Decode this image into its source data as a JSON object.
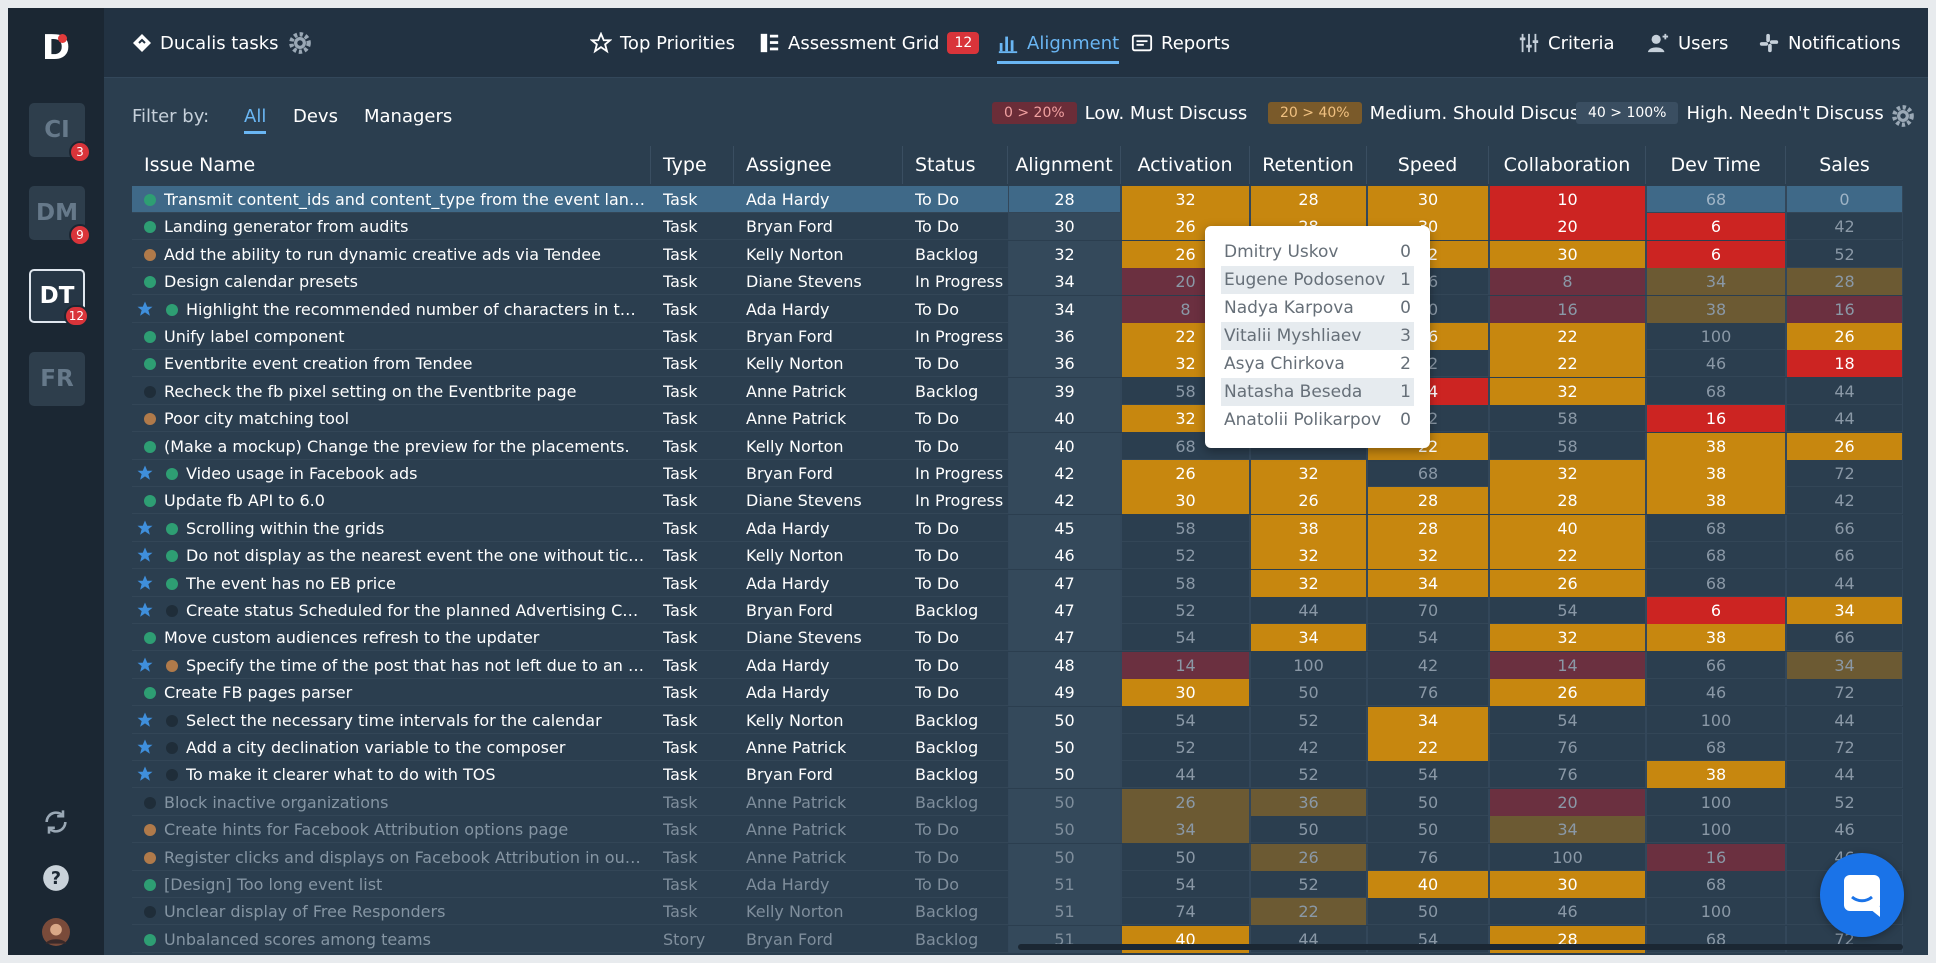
{
  "sidebar": {
    "projects": [
      {
        "code": "CI",
        "badge": "3"
      },
      {
        "code": "DM",
        "badge": "9"
      },
      {
        "code": "DT",
        "badge": "12"
      },
      {
        "code": "FR",
        "badge": ""
      }
    ]
  },
  "topbar": {
    "workspace": "Ducalis tasks",
    "top_priorities": "Top Priorities",
    "assessment_grid": "Assessment Grid",
    "assessment_count": "12",
    "alignment": "Alignment",
    "reports": "Reports",
    "criteria": "Criteria",
    "users": "Users",
    "notifications": "Notifications"
  },
  "filter": {
    "label": "Filter by:",
    "tabs": [
      "All",
      "Devs",
      "Managers"
    ]
  },
  "legend": [
    {
      "range": "0 > 20%",
      "text": "Low. Must Discuss",
      "bg": "#6b2d38",
      "fg": "#f0a0a0"
    },
    {
      "range": "20 > 40%",
      "text": "Medium. Should Discuss",
      "bg": "#7a5a2a",
      "fg": "#f0c080"
    },
    {
      "range": "40 > 100%",
      "text": "High. Needn't Discuss",
      "bg": "#3a4e61",
      "fg": "#ffffff"
    }
  ],
  "columns": {
    "issue": "Issue Name",
    "type": "Type",
    "assignee": "Assignee",
    "status": "Status",
    "alignment": "Alignment",
    "criteria": [
      "Activation",
      "Retention",
      "Speed",
      "Collaboration",
      "Dev Time",
      "Sales"
    ]
  },
  "colors": {
    "green": "#2e9e73",
    "brown": "#b07a4a",
    "dark": "#1f2d39",
    "star": "#3f8fdc"
  },
  "rows": [
    {
      "name": "Transmit content_ids and content_type from the event landin...",
      "type": "Task",
      "assignee": "Ada Hardy",
      "status": "To Do",
      "alignment": "28",
      "star": false,
      "dot": "green",
      "dim": false,
      "sel": true,
      "vals": [
        "32",
        "28",
        "30",
        "10",
        "68",
        "0"
      ],
      "cls": [
        "y",
        "y",
        "y",
        "r",
        "",
        ""
      ]
    },
    {
      "name": "Landing generator from audits",
      "type": "Task",
      "assignee": "Bryan Ford",
      "status": "To Do",
      "alignment": "30",
      "star": false,
      "dot": "green",
      "dim": false,
      "sel": false,
      "vals": [
        "26",
        "28",
        "30",
        "20",
        "6",
        "42"
      ],
      "cls": [
        "y",
        "y",
        "y",
        "r",
        "r",
        ""
      ]
    },
    {
      "name": "Add the ability to run dynamic creative ads via Tendee",
      "type": "Task",
      "assignee": "Kelly Norton",
      "status": "Backlog",
      "alignment": "32",
      "star": false,
      "dot": "brown",
      "dim": false,
      "sel": false,
      "vals": [
        "26",
        "",
        "22",
        "30",
        "6",
        "52"
      ],
      "cls": [
        "y",
        "",
        "y",
        "y",
        "r",
        ""
      ]
    },
    {
      "name": "Design calendar presets",
      "type": "Task",
      "assignee": "Diane Stevens",
      "status": "In Progress",
      "alignment": "34",
      "star": false,
      "dot": "green",
      "dim": false,
      "sel": false,
      "vals": [
        "20",
        "",
        "76",
        "8",
        "34",
        "28"
      ],
      "cls": [
        "rdim",
        "",
        "",
        "rdim",
        "ydim",
        "ydim"
      ]
    },
    {
      "name": "Highlight the recommended number of characters in the t...",
      "type": "Task",
      "assignee": "Ada Hardy",
      "status": "To Do",
      "alignment": "34",
      "star": true,
      "dot": "green",
      "dim": false,
      "sel": false,
      "vals": [
        "8",
        "",
        "50",
        "16",
        "38",
        "16"
      ],
      "cls": [
        "rdim",
        "",
        "",
        "rdim",
        "ydim",
        "rdim"
      ]
    },
    {
      "name": "Unify label component",
      "type": "Task",
      "assignee": "Bryan Ford",
      "status": "In Progress",
      "alignment": "36",
      "star": false,
      "dot": "green",
      "dim": false,
      "sel": false,
      "vals": [
        "22",
        "",
        "26",
        "22",
        "100",
        "26"
      ],
      "cls": [
        "y",
        "",
        "y",
        "y",
        "",
        "y"
      ]
    },
    {
      "name": "Eventbrite event creation from Tendee",
      "type": "Task",
      "assignee": "Kelly Norton",
      "status": "To Do",
      "alignment": "36",
      "star": false,
      "dot": "green",
      "dim": false,
      "sel": false,
      "vals": [
        "32",
        "",
        "42",
        "22",
        "46",
        "18"
      ],
      "cls": [
        "y",
        "",
        "",
        "y",
        "",
        "r"
      ]
    },
    {
      "name": "Recheck the fb pixel setting on the Eventbrite page",
      "type": "Task",
      "assignee": "Anne Patrick",
      "status": "Backlog",
      "alignment": "39",
      "star": false,
      "dot": "dark",
      "dim": false,
      "sel": false,
      "vals": [
        "58",
        "",
        "14",
        "32",
        "68",
        "44"
      ],
      "cls": [
        "",
        "",
        "r",
        "y",
        "",
        ""
      ]
    },
    {
      "name": "Poor city matching tool",
      "type": "Task",
      "assignee": "Anne Patrick",
      "status": "To Do",
      "alignment": "40",
      "star": false,
      "dot": "brown",
      "dim": false,
      "sel": false,
      "vals": [
        "32",
        "",
        "52",
        "58",
        "16",
        "44"
      ],
      "cls": [
        "y",
        "",
        "",
        "",
        "r",
        ""
      ]
    },
    {
      "name": "(Make a mockup) Change the preview for the placements.",
      "type": "Task",
      "assignee": "Kelly Norton",
      "status": "To Do",
      "alignment": "40",
      "star": false,
      "dot": "green",
      "dim": false,
      "sel": false,
      "vals": [
        "68",
        "",
        "22",
        "58",
        "38",
        "26"
      ],
      "cls": [
        "",
        "",
        "y",
        "",
        "y",
        "y"
      ]
    },
    {
      "name": "Video usage in Facebook ads",
      "type": "Task",
      "assignee": "Bryan Ford",
      "status": "In Progress",
      "alignment": "42",
      "star": true,
      "dot": "green",
      "dim": false,
      "sel": false,
      "vals": [
        "26",
        "32",
        "68",
        "32",
        "38",
        "72"
      ],
      "cls": [
        "y",
        "y",
        "",
        "y",
        "y",
        ""
      ]
    },
    {
      "name": "Update fb API to 6.0",
      "type": "Task",
      "assignee": "Diane Stevens",
      "status": "In Progress",
      "alignment": "42",
      "star": false,
      "dot": "green",
      "dim": false,
      "sel": false,
      "vals": [
        "30",
        "26",
        "28",
        "28",
        "38",
        "42"
      ],
      "cls": [
        "y",
        "y",
        "y",
        "y",
        "y",
        ""
      ]
    },
    {
      "name": "Scrolling within the grids",
      "type": "Task",
      "assignee": "Ada Hardy",
      "status": "To Do",
      "alignment": "45",
      "star": true,
      "dot": "green",
      "dim": false,
      "sel": false,
      "vals": [
        "58",
        "38",
        "28",
        "40",
        "68",
        "66"
      ],
      "cls": [
        "",
        "y",
        "y",
        "y",
        "",
        ""
      ]
    },
    {
      "name": "Do not display as the nearest event the one without tickets",
      "type": "Task",
      "assignee": "Kelly Norton",
      "status": "To Do",
      "alignment": "46",
      "star": true,
      "dot": "green",
      "dim": false,
      "sel": false,
      "vals": [
        "52",
        "32",
        "32",
        "22",
        "68",
        "66"
      ],
      "cls": [
        "",
        "y",
        "y",
        "y",
        "",
        ""
      ]
    },
    {
      "name": "The event has no EB price",
      "type": "Task",
      "assignee": "Ada Hardy",
      "status": "To Do",
      "alignment": "47",
      "star": true,
      "dot": "green",
      "dim": false,
      "sel": false,
      "vals": [
        "58",
        "32",
        "34",
        "26",
        "68",
        "44"
      ],
      "cls": [
        "",
        "y",
        "y",
        "y",
        "",
        ""
      ]
    },
    {
      "name": "Create status Scheduled for the planned Advertising Cam...",
      "type": "Task",
      "assignee": "Bryan Ford",
      "status": "Backlog",
      "alignment": "47",
      "star": true,
      "dot": "dark",
      "dim": false,
      "sel": false,
      "vals": [
        "52",
        "44",
        "70",
        "54",
        "6",
        "34"
      ],
      "cls": [
        "",
        "",
        "",
        "",
        "r",
        "y"
      ]
    },
    {
      "name": "Move custom audiences refresh to the updater",
      "type": "Task",
      "assignee": "Diane Stevens",
      "status": "To Do",
      "alignment": "47",
      "star": false,
      "dot": "green",
      "dim": false,
      "sel": false,
      "vals": [
        "54",
        "34",
        "54",
        "32",
        "38",
        "66"
      ],
      "cls": [
        "",
        "y",
        "",
        "y",
        "y",
        ""
      ]
    },
    {
      "name": "Specify the time of the post that has not left due to an error",
      "type": "Task",
      "assignee": "Ada Hardy",
      "status": "To Do",
      "alignment": "48",
      "star": true,
      "dot": "brown",
      "dim": false,
      "sel": false,
      "vals": [
        "14",
        "100",
        "42",
        "14",
        "66",
        "34"
      ],
      "cls": [
        "rdim",
        "",
        "",
        "rdim",
        "",
        "ydim"
      ]
    },
    {
      "name": "Create FB pages parser",
      "type": "Task",
      "assignee": "Ada Hardy",
      "status": "To Do",
      "alignment": "49",
      "star": false,
      "dot": "green",
      "dim": false,
      "sel": false,
      "vals": [
        "30",
        "50",
        "76",
        "26",
        "46",
        "72"
      ],
      "cls": [
        "y",
        "",
        "",
        "y",
        "",
        ""
      ]
    },
    {
      "name": "Select the necessary time intervals for the calendar",
      "type": "Task",
      "assignee": "Kelly Norton",
      "status": "Backlog",
      "alignment": "50",
      "star": true,
      "dot": "dark",
      "dim": false,
      "sel": false,
      "vals": [
        "54",
        "52",
        "34",
        "54",
        "100",
        "44"
      ],
      "cls": [
        "",
        "",
        "y",
        "",
        "",
        ""
      ]
    },
    {
      "name": "Add a city declination variable to the composer",
      "type": "Task",
      "assignee": "Anne Patrick",
      "status": "Backlog",
      "alignment": "50",
      "star": true,
      "dot": "dark",
      "dim": false,
      "sel": false,
      "vals": [
        "52",
        "42",
        "22",
        "76",
        "68",
        "72"
      ],
      "cls": [
        "",
        "",
        "y",
        "",
        "",
        ""
      ]
    },
    {
      "name": "To make it clearer what to do with TOS",
      "type": "Task",
      "assignee": "Bryan Ford",
      "status": "Backlog",
      "alignment": "50",
      "star": true,
      "dot": "dark",
      "dim": false,
      "sel": false,
      "vals": [
        "44",
        "52",
        "54",
        "76",
        "38",
        "44"
      ],
      "cls": [
        "",
        "",
        "",
        "",
        "y",
        ""
      ]
    },
    {
      "name": "Block inactive organizations",
      "type": "Task",
      "assignee": "Anne Patrick",
      "status": "Backlog",
      "alignment": "50",
      "star": false,
      "dot": "dark",
      "dim": true,
      "sel": false,
      "vals": [
        "26",
        "36",
        "50",
        "20",
        "100",
        "52"
      ],
      "cls": [
        "ydim",
        "ydim",
        "",
        "rdim",
        "",
        ""
      ]
    },
    {
      "name": "Create hints for Facebook Attribution options page",
      "type": "Task",
      "assignee": "Anne Patrick",
      "status": "To Do",
      "alignment": "50",
      "star": false,
      "dot": "brown",
      "dim": true,
      "sel": false,
      "vals": [
        "34",
        "50",
        "50",
        "34",
        "100",
        "46"
      ],
      "cls": [
        "ydim",
        "",
        "",
        "ydim",
        "",
        ""
      ]
    },
    {
      "name": "Register clicks and displays on Facebook Attribution in our sh...",
      "type": "Task",
      "assignee": "Anne Patrick",
      "status": "To Do",
      "alignment": "50",
      "star": false,
      "dot": "brown",
      "dim": true,
      "sel": false,
      "vals": [
        "50",
        "26",
        "76",
        "100",
        "16",
        "46"
      ],
      "cls": [
        "",
        "ydim",
        "",
        "",
        "rdim",
        ""
      ]
    },
    {
      "name": "[Design] Too long event list",
      "type": "Task",
      "assignee": "Ada Hardy",
      "status": "To Do",
      "alignment": "51",
      "star": false,
      "dot": "green",
      "dim": true,
      "sel": false,
      "vals": [
        "54",
        "52",
        "40",
        "30",
        "68",
        ""
      ],
      "cls": [
        "",
        "",
        "y",
        "y",
        "",
        ""
      ]
    },
    {
      "name": "Unclear display of Free Responders",
      "type": "Task",
      "assignee": "Kelly Norton",
      "status": "Backlog",
      "alignment": "51",
      "star": false,
      "dot": "dark",
      "dim": true,
      "sel": false,
      "vals": [
        "74",
        "22",
        "50",
        "46",
        "100",
        ""
      ],
      "cls": [
        "",
        "ydim",
        "",
        "",
        "",
        ""
      ]
    },
    {
      "name": "Unbalanced scores among teams",
      "type": "Story",
      "assignee": "Bryan Ford",
      "status": "Backlog",
      "alignment": "51",
      "star": false,
      "dot": "green",
      "dim": true,
      "sel": false,
      "vals": [
        "40",
        "44",
        "54",
        "28",
        "68",
        "72"
      ],
      "cls": [
        "y",
        "",
        "",
        "y",
        "",
        ""
      ]
    }
  ],
  "popup": [
    {
      "name": "Dmitry Uskov",
      "score": "0"
    },
    {
      "name": "Eugene Podosenov",
      "score": "1"
    },
    {
      "name": "Nadya Karpova",
      "score": "0"
    },
    {
      "name": "Vitalii Myshliaev",
      "score": "3"
    },
    {
      "name": "Asya Chirkova",
      "score": "2"
    },
    {
      "name": "Natasha Beseda",
      "score": "1"
    },
    {
      "name": "Anatolii Polikarpov",
      "score": "0"
    }
  ]
}
